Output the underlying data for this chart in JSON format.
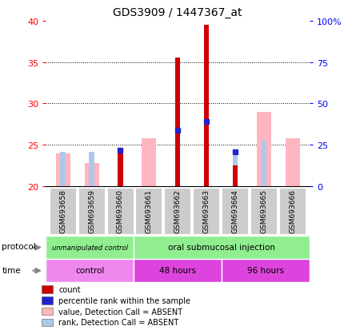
{
  "title": "GDS3909 / 1447367_at",
  "samples": [
    "GSM693658",
    "GSM693659",
    "GSM693660",
    "GSM693661",
    "GSM693662",
    "GSM693663",
    "GSM693664",
    "GSM693665",
    "GSM693666"
  ],
  "count_values": [
    0,
    0,
    24.5,
    0,
    35.5,
    39.5,
    22.5,
    0,
    0
  ],
  "percentile_values": [
    0,
    0,
    24.3,
    0,
    26.8,
    27.8,
    24.1,
    0,
    0
  ],
  "pink_bar_top": [
    24.0,
    22.8,
    0,
    25.8,
    0,
    0,
    0,
    29.0,
    25.8
  ],
  "lightblue_bar_top": [
    24.15,
    24.1,
    0,
    0,
    0,
    0,
    24.1,
    25.5,
    0
  ],
  "has_count": [
    0,
    0,
    1,
    0,
    1,
    1,
    1,
    0,
    0
  ],
  "has_percentile": [
    0,
    0,
    1,
    0,
    1,
    1,
    1,
    0,
    0
  ],
  "has_pink": [
    1,
    1,
    0,
    1,
    0,
    0,
    0,
    1,
    1
  ],
  "has_blue": [
    1,
    1,
    0,
    0,
    0,
    0,
    1,
    1,
    0
  ],
  "ylim": [
    20,
    40
  ],
  "yticks_left": [
    20,
    25,
    30,
    35,
    40
  ],
  "yticks_right": [
    0,
    25,
    50,
    75,
    100
  ],
  "dotted_lines": [
    25,
    30,
    35
  ],
  "count_color": "#CC0000",
  "percentile_color": "#2222CC",
  "pink_color": "#FFB6C1",
  "lightblue_color": "#B0C8E8",
  "sample_bg_color": "#CCCCCC",
  "protocol_color": "#90EE90",
  "time_color_light": "#EE88EE",
  "time_color_dark": "#DD44DD",
  "background_color": "#FFFFFF",
  "legend_items": [
    {
      "color": "#CC0000",
      "label": "count"
    },
    {
      "color": "#2222CC",
      "label": "percentile rank within the sample"
    },
    {
      "color": "#FFB6C1",
      "label": "value, Detection Call = ABSENT"
    },
    {
      "color": "#B0C8E8",
      "label": "rank, Detection Call = ABSENT"
    }
  ]
}
